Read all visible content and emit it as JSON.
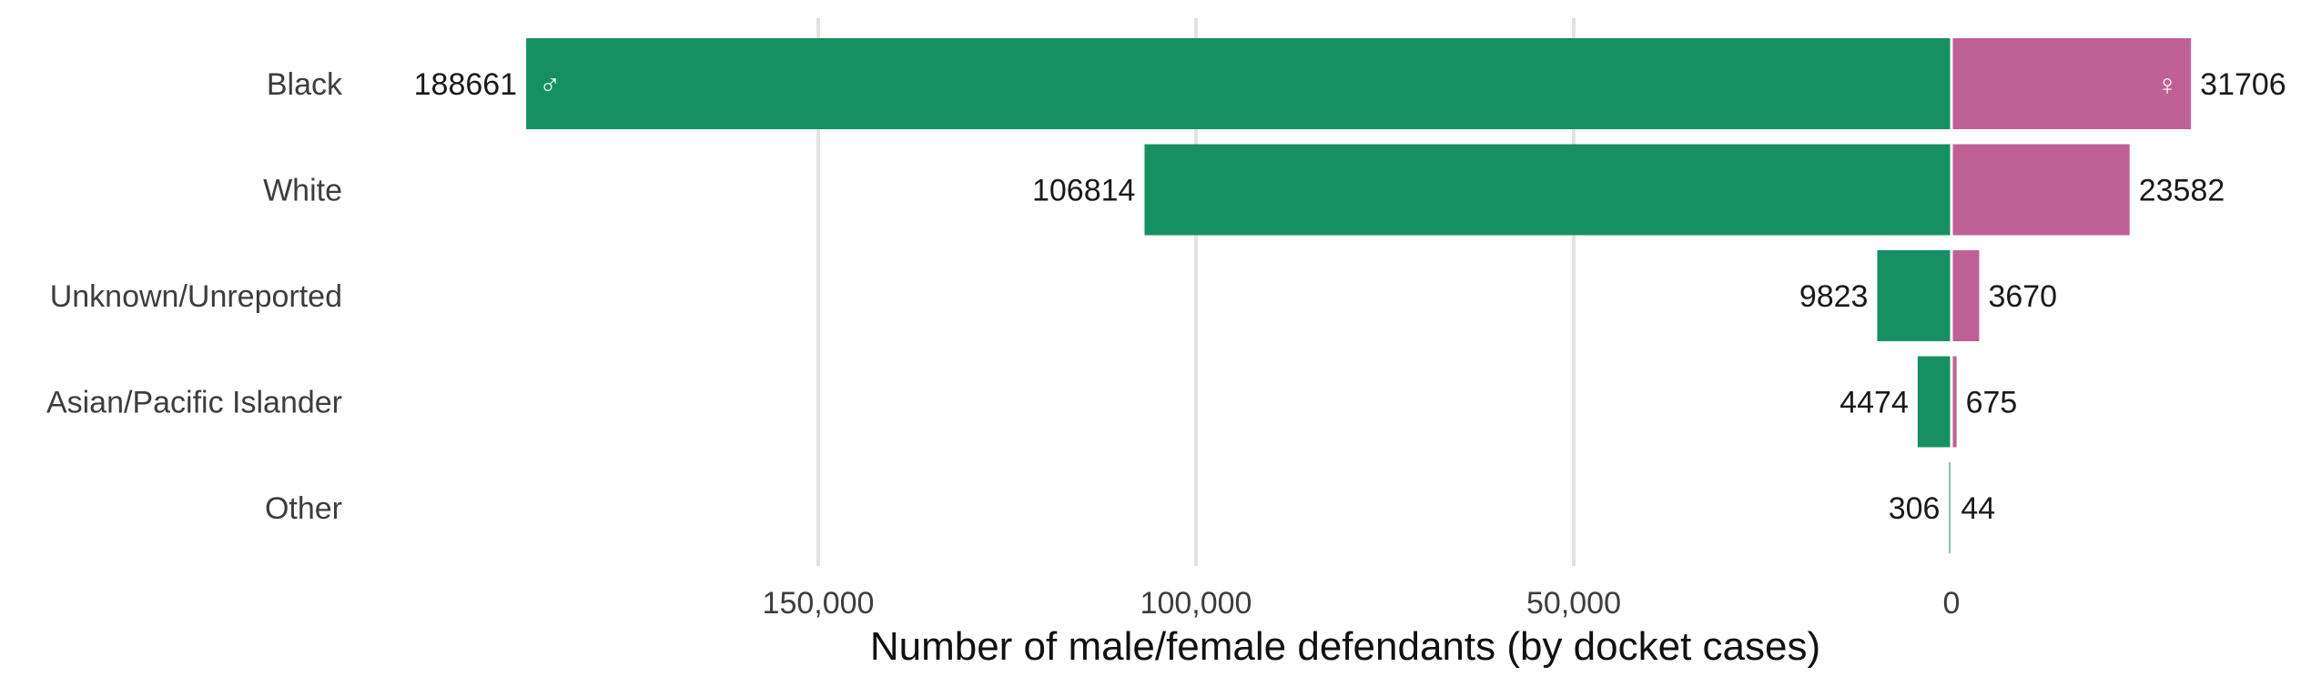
{
  "chart_data": {
    "type": "bar",
    "orientation": "horizontal-diverging",
    "title": "",
    "xlabel": "Number of male/female defendants (by docket cases)",
    "ylabel": "",
    "categories": [
      "Black",
      "White",
      "Unknown/Unreported",
      "Asian/Pacific Islander",
      "Other"
    ],
    "series": [
      {
        "values": [
          188661,
          106814,
          9823,
          4474,
          306
        ],
        "color": "#169062",
        "symbol": "♂",
        "direction": "left"
      },
      {
        "values": [
          31706,
          23582,
          3670,
          675,
          44
        ],
        "color": "#c06195",
        "symbol": "♀",
        "direction": "right"
      }
    ],
    "x_ticks": [
      {
        "value": 150000,
        "label": "150,000"
      },
      {
        "value": 100000,
        "label": "100,000"
      },
      {
        "value": 50000,
        "label": "50,000"
      },
      {
        "value": 0,
        "label": "0"
      }
    ],
    "grid": true,
    "legend": "none"
  }
}
